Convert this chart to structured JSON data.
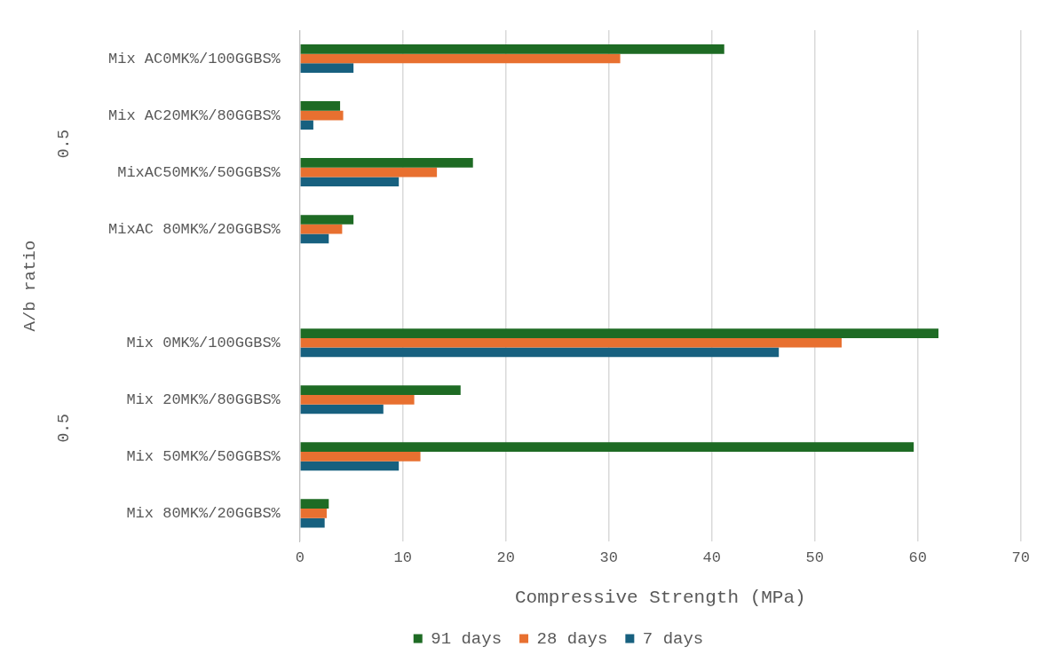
{
  "chart_data": {
    "type": "bar",
    "orientation": "horizontal",
    "ylabel": "A/b ratio",
    "xlabel": "Compressive Strength (MPa)",
    "categories": [
      "Mix AC0MK%/100GGBS%",
      "Mix AC20MK%/80GGBS%",
      "MixAC50MK%/50GGBS%",
      "MixAC 80MK%/20GGBS%",
      null,
      "Mix 0MK%/100GGBS%",
      "Mix 20MK%/80GGBS%",
      "Mix 50MK%/50GGBS%",
      "Mix 80MK%/20GGBS%"
    ],
    "series": [
      {
        "name": "91 days",
        "color": "#1e6b24",
        "values": [
          41.2,
          3.9,
          16.8,
          5.2,
          null,
          62,
          15.6,
          59.6,
          2.8
        ]
      },
      {
        "name": "28 days",
        "color": "#e87030",
        "values": [
          31.1,
          4.2,
          13.3,
          4.1,
          null,
          52.6,
          11.1,
          11.7,
          2.6
        ]
      },
      {
        "name": "7 days",
        "color": "#17607f",
        "values": [
          5.2,
          1.3,
          9.6,
          2.8,
          null,
          46.5,
          8.1,
          9.6,
          2.4
        ]
      }
    ],
    "xlim": [
      0,
      70
    ],
    "xticks": [
      0,
      10,
      20,
      30,
      40,
      50,
      60,
      70
    ],
    "annotations": [
      "0.5",
      "0.5"
    ],
    "grid": "x",
    "legend": "bottom"
  }
}
